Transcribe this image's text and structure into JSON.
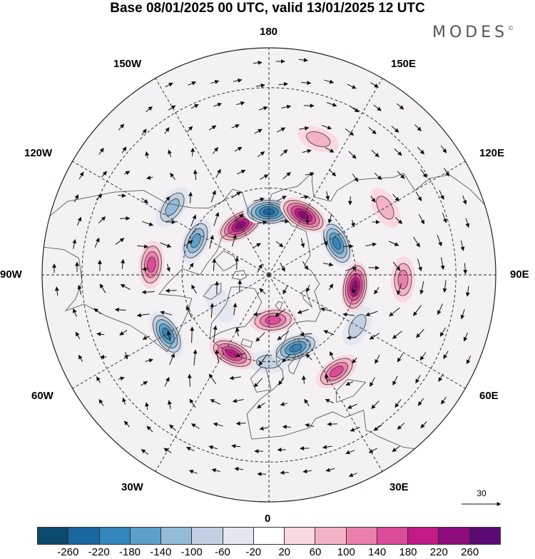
{
  "header": {
    "title": "Base 08/01/2025 00 UTC, valid 13/01/2025 12 UTC",
    "brand": "MODES",
    "brand_mark": "©"
  },
  "map": {
    "projection": "north-polar-stereographic",
    "longitude_labels": {
      "top": "180",
      "upper_left": "150W",
      "upper_right": "150E",
      "left_upper": "120W",
      "right_upper": "120E",
      "left": "90W",
      "right": "90E",
      "left_lower": "60W",
      "right_lower": "60E",
      "lower_left": "30W",
      "lower_right": "30E",
      "bottom": "0"
    },
    "reference_vector": {
      "label": "30",
      "magnitude": 30
    },
    "colors": {
      "neg_strong": "#1f6fa3",
      "pos_strong": "#c4198c",
      "neutral": "#ffffff",
      "land": "#555555"
    },
    "anomaly_centers": [
      {
        "lat": 70,
        "lon": -150,
        "value": 240
      },
      {
        "lat": 68,
        "lon": 180,
        "value": -240
      },
      {
        "lat": 66,
        "lon": 150,
        "value": 250
      },
      {
        "lat": 64,
        "lon": 115,
        "value": -210
      },
      {
        "lat": 60,
        "lon": 82,
        "value": 230
      },
      {
        "lat": 45,
        "lon": 88,
        "value": 110
      },
      {
        "lat": 63,
        "lon": 20,
        "value": -200
      },
      {
        "lat": 74,
        "lon": 5,
        "value": 150
      },
      {
        "lat": 60,
        "lon": -25,
        "value": 190
      },
      {
        "lat": 50,
        "lon": 35,
        "value": 140
      },
      {
        "lat": 50,
        "lon": -60,
        "value": -200
      },
      {
        "lat": 50,
        "lon": -95,
        "value": 160
      },
      {
        "lat": 62,
        "lon": -115,
        "value": -150
      },
      {
        "lat": 50,
        "lon": -125,
        "value": -120
      },
      {
        "lat": 70,
        "lon": -60,
        "value": -50
      },
      {
        "lat": 55,
        "lon": 60,
        "value": -70
      },
      {
        "lat": 60,
        "lon": 0,
        "value": -60
      },
      {
        "lat": 42,
        "lon": 160,
        "value": 60
      },
      {
        "lat": 45,
        "lon": 120,
        "value": 70
      }
    ]
  },
  "legend": {
    "levels": [
      -260,
      -220,
      -180,
      -140,
      -100,
      -60,
      -20,
      20,
      60,
      100,
      140,
      180,
      220,
      260
    ],
    "tick_labels": [
      "-260",
      "-220",
      "-180",
      "-140",
      "-100",
      "-60",
      "-20",
      "20",
      "60",
      "100",
      "140",
      "180",
      "220",
      "260"
    ],
    "fill_colors": [
      "#0b4a6e",
      "#1a67a0",
      "#3386bd",
      "#5aa0cb",
      "#93bcd9",
      "#c2d0e3",
      "#e4e6f0",
      "#ffffff",
      "#f9d8df",
      "#f4b2c6",
      "#ec7fad",
      "#dd4c99",
      "#c21a86",
      "#8e0c7b",
      "#5c0a74"
    ]
  }
}
